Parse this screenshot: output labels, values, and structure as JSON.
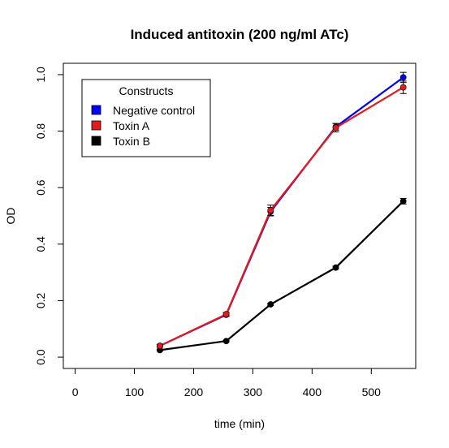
{
  "chart_data": {
    "type": "line",
    "title": "Induced antitoxin (200 ng/ml ATc)",
    "xlabel": "time (min)",
    "ylabel": "OD",
    "xlim": [
      -20,
      575
    ],
    "ylim": [
      -0.04,
      1.04
    ],
    "xticks": [
      0,
      100,
      200,
      300,
      400,
      500
    ],
    "yticks": [
      0.0,
      0.2,
      0.4,
      0.6,
      0.8,
      1.0
    ],
    "xtick_labels": [
      "0",
      "100",
      "200",
      "300",
      "400",
      "500"
    ],
    "ytick_labels": [
      "0.0",
      "0.2",
      "0.4",
      "0.6",
      "0.8",
      "1.0"
    ],
    "legend": {
      "title": "Constructs",
      "position": "top-left"
    },
    "x": [
      143,
      255,
      330,
      440,
      554
    ],
    "series": [
      {
        "name": "Negative control",
        "color": "#0000ff",
        "values": [
          0.04,
          0.15,
          0.515,
          0.815,
          0.99
        ],
        "errors": [
          0.005,
          0.006,
          0.015,
          0.012,
          0.018
        ]
      },
      {
        "name": "Toxin A",
        "color": "#e41a1c",
        "values": [
          0.04,
          0.152,
          0.52,
          0.812,
          0.955
        ],
        "errors": [
          0.005,
          0.006,
          0.018,
          0.015,
          0.022
        ]
      },
      {
        "name": "Toxin B",
        "color": "#000000",
        "values": [
          0.025,
          0.057,
          0.187,
          0.317,
          0.552
        ],
        "errors": [
          0.003,
          0.003,
          0.004,
          0.005,
          0.01
        ]
      }
    ]
  }
}
